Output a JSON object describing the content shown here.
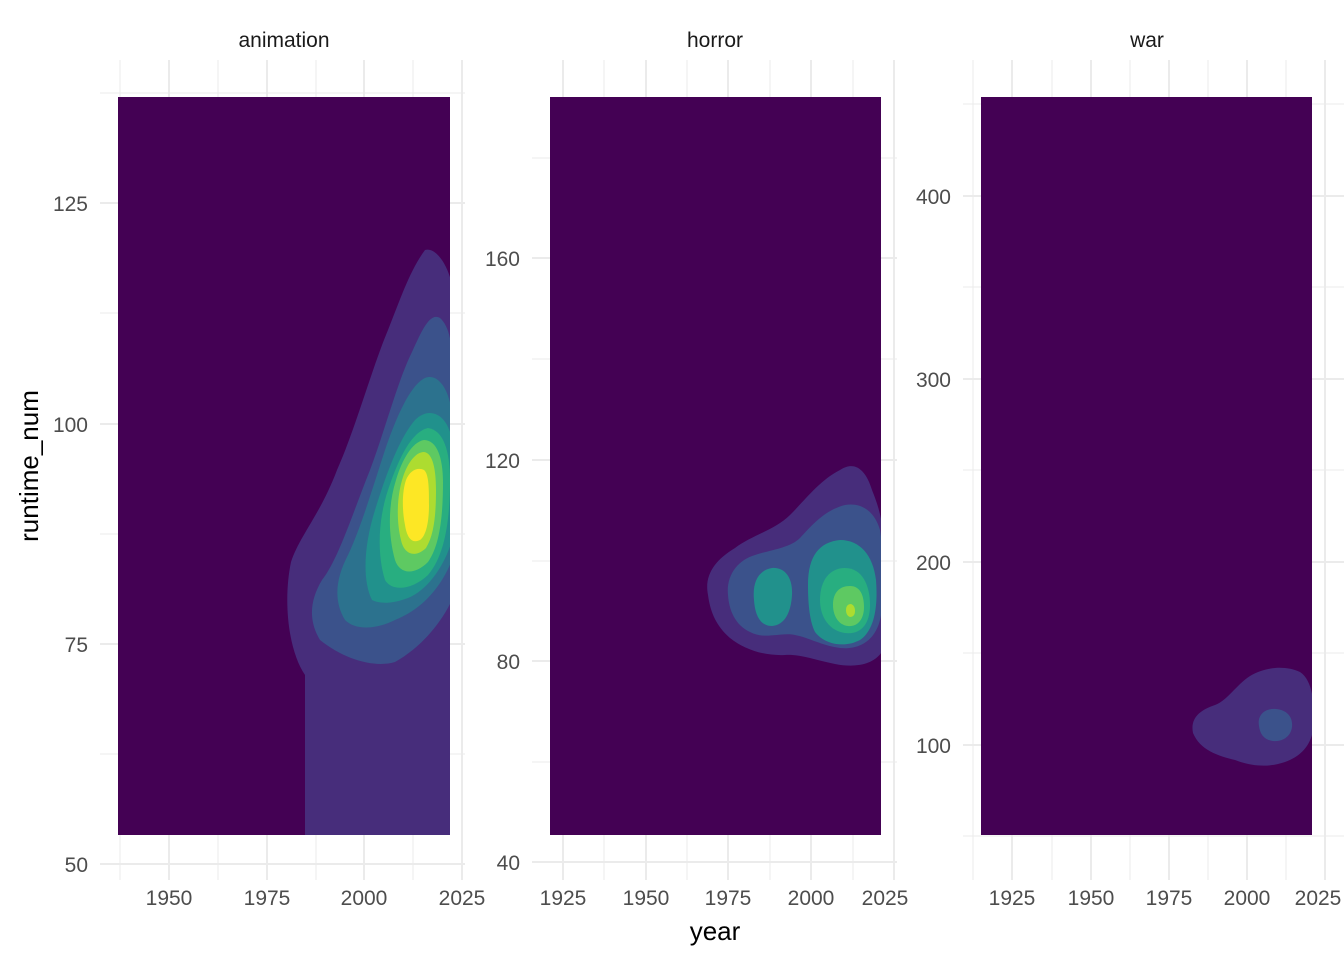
{
  "chart_data": {
    "type": "heatmap",
    "subtype": "filled-2d-density-contours",
    "xlabel": "year",
    "ylabel": "runtime_num",
    "grid": true,
    "legend": "none",
    "palette": [
      "#440154",
      "#472d7b",
      "#3b528b",
      "#2c728e",
      "#21918c",
      "#28ae80",
      "#5ec962",
      "#addc30",
      "#fde725"
    ],
    "panels": [
      {
        "name": "animation",
        "xlim": [
          1934,
          2028
        ],
        "ylim": [
          48,
          138
        ],
        "x_ticks": [
          1950,
          1975,
          2000,
          2025
        ],
        "x_tick_labels": [
          "1950",
          "1975",
          "2000",
          "2025"
        ],
        "y_ticks": [
          50,
          75,
          100,
          125
        ],
        "y_tick_labels": [
          "50",
          "75",
          "100",
          "125"
        ],
        "density_x_range": [
          1937,
          2022
        ],
        "density_y_range": [
          53.3,
          137
        ],
        "peaks": [
          {
            "x": 2014,
            "y": 91,
            "level": 8
          }
        ]
      },
      {
        "name": "horror",
        "xlim": [
          1917,
          2028
        ],
        "ylim": [
          40,
          182
        ],
        "x_ticks": [
          1925,
          1950,
          1975,
          2000,
          2025
        ],
        "x_tick_labels": [
          "1925",
          "1950",
          "1975",
          "2000",
          "2025"
        ],
        "y_ticks": [
          40,
          80,
          120,
          160
        ],
        "y_tick_labels": [
          "40",
          "80",
          "120",
          "160"
        ],
        "density_x_range": [
          1920,
          2022
        ],
        "density_y_range": [
          45,
          192
        ],
        "peaks": [
          {
            "x": 1987,
            "y": 93,
            "level": 4
          },
          {
            "x": 2012,
            "y": 90,
            "level": 7
          }
        ]
      },
      {
        "name": "war",
        "xlim": [
          1905,
          2030
        ],
        "ylim": [
          50,
          462
        ],
        "x_ticks": [
          1925,
          1950,
          1975,
          2000,
          2025
        ],
        "x_tick_labels": [
          "1925",
          "1950",
          "1975",
          "2000",
          "2025"
        ],
        "y_ticks": [
          100,
          200,
          300,
          400
        ],
        "y_tick_labels": [
          "100",
          "200",
          "300",
          "400"
        ],
        "density_x_range": [
          1912,
          2020
        ],
        "density_y_range": [
          55,
          455
        ],
        "peaks": [
          {
            "x": 2009,
            "y": 110,
            "level": 2
          }
        ]
      }
    ]
  }
}
